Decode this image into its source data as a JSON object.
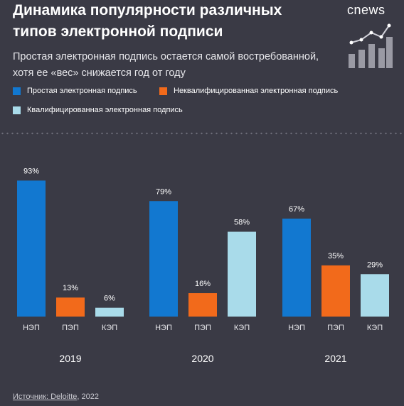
{
  "header": {
    "title": "Динамика популярности различных типов электронной подписи",
    "subtitle": "Простая электронная подпись остается самой востребованной, хотя ее «вес» снижается год от году",
    "logo_text": "cnews"
  },
  "legend": [
    {
      "label": "Простая электронная подпись",
      "color": "#1278d0"
    },
    {
      "label": "Неквалифицированная электронная подпись",
      "color": "#f26a1b"
    },
    {
      "label": "Квалифицированная электронная подпись",
      "color": "#a9dbea"
    }
  ],
  "footer": {
    "source_label": "Источник: Deloitte",
    "source_year": ", 2022"
  },
  "chart_data": {
    "type": "bar",
    "ylim": [
      0,
      100
    ],
    "groups": [
      {
        "year": "2019",
        "bars": [
          {
            "category": "НЭП",
            "value": 93,
            "label": "93%",
            "color": "#1278d0"
          },
          {
            "category": "ПЭП",
            "value": 13,
            "label": "13%",
            "color": "#f26a1b"
          },
          {
            "category": "КЭП",
            "value": 6,
            "label": "6%",
            "color": "#a9dbea"
          }
        ]
      },
      {
        "year": "2020",
        "bars": [
          {
            "category": "НЭП",
            "value": 79,
            "label": "79%",
            "color": "#1278d0"
          },
          {
            "category": "ПЭП",
            "value": 16,
            "label": "16%",
            "color": "#f26a1b"
          },
          {
            "category": "КЭП",
            "value": 58,
            "label": "58%",
            "color": "#a9dbea"
          }
        ]
      },
      {
        "year": "2021",
        "bars": [
          {
            "category": "НЭП",
            "value": 67,
            "label": "67%",
            "color": "#1278d0"
          },
          {
            "category": "ПЭП",
            "value": 35,
            "label": "35%",
            "color": "#f26a1b"
          },
          {
            "category": "КЭП",
            "value": 29,
            "label": "29%",
            "color": "#a9dbea"
          }
        ]
      }
    ],
    "grid": false
  }
}
